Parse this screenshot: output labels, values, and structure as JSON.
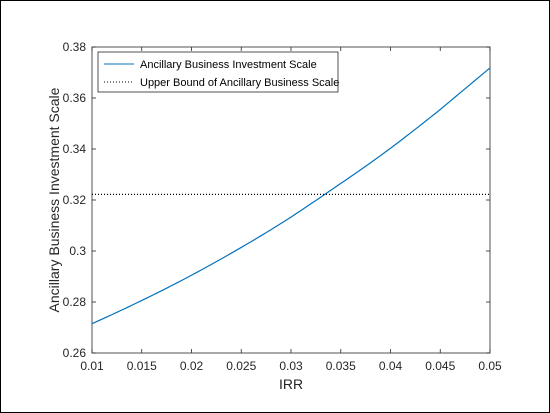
{
  "chart_data": {
    "type": "line",
    "title": "",
    "xlabel": "IRR",
    "ylabel": "Ancillary Business Investment Scale",
    "xlim": [
      0.01,
      0.05
    ],
    "ylim": [
      0.26,
      0.38
    ],
    "x_ticks": [
      0.01,
      0.015,
      0.02,
      0.025,
      0.03,
      0.035,
      0.04,
      0.045,
      0.05
    ],
    "x_tick_labels": [
      "0.01",
      "0.015",
      "0.02",
      "0.025",
      "0.03",
      "0.035",
      "0.04",
      "0.045",
      "0.05"
    ],
    "y_ticks": [
      0.26,
      0.28,
      0.3,
      0.32,
      0.34,
      0.36,
      0.38
    ],
    "y_tick_labels": [
      "0.26",
      "0.28",
      "0.3",
      "0.32",
      "0.34",
      "0.36",
      "0.38"
    ],
    "grid": false,
    "legend_position": "top-left",
    "series": [
      {
        "name": "Ancillary Business Investment Scale",
        "style": "solid",
        "color": "#0072BD",
        "x": [
          0.01,
          0.015,
          0.02,
          0.025,
          0.03,
          0.035,
          0.04,
          0.045,
          0.05
        ],
        "y": [
          0.2715,
          0.2806,
          0.2905,
          0.3014,
          0.3133,
          0.3265,
          0.3403,
          0.3555,
          0.3718
        ]
      },
      {
        "name": "Upper Bound of Ancillary Business Scale",
        "style": "dotted",
        "color": "#000000",
        "x": [
          0.01,
          0.05
        ],
        "y": [
          0.3222,
          0.3222
        ]
      }
    ]
  }
}
